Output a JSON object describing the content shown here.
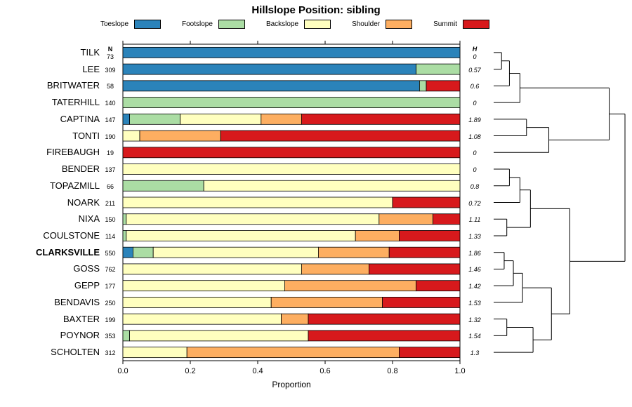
{
  "title": "Hillslope Position: sibling",
  "axis": {
    "xlabel": "Proportion",
    "ticks": [
      0,
      0.2,
      0.4,
      0.6,
      0.8,
      1.0
    ],
    "tick_labels": [
      "0.0",
      "0.2",
      "0.4",
      "0.6",
      "0.8",
      "1.0"
    ],
    "xlim": [
      0,
      1
    ]
  },
  "columns": {
    "n_header": "N",
    "h_header": "H"
  },
  "legend": [
    {
      "label": "Toeslope",
      "color": "#2B83BA"
    },
    {
      "label": "Footslope",
      "color": "#ABDDA4"
    },
    {
      "label": "Backslope",
      "color": "#FFFFBF"
    },
    {
      "label": "Shoulder",
      "color": "#FDAE61"
    },
    {
      "label": "Summit",
      "color": "#D7191C"
    }
  ],
  "chart_data": {
    "type": "bar",
    "stacked": true,
    "orientation": "horizontal",
    "title": "Hillslope Position: sibling",
    "xlabel": "Proportion",
    "xlim": [
      0,
      1
    ],
    "series_names": [
      "Toeslope",
      "Footslope",
      "Backslope",
      "Shoulder",
      "Summit"
    ],
    "series_colors": [
      "#2B83BA",
      "#ABDDA4",
      "#FFFFBF",
      "#FDAE61",
      "#D7191C"
    ],
    "rows": [
      {
        "name": "TILK",
        "n": 73,
        "h": "0",
        "bold": false,
        "segments": [
          1,
          0,
          0,
          0,
          0
        ]
      },
      {
        "name": "LEE",
        "n": 309,
        "h": "0.57",
        "bold": false,
        "segments": [
          0.87,
          0.13,
          0,
          0,
          0
        ]
      },
      {
        "name": "BRITWATER",
        "n": 58,
        "h": "0.6",
        "bold": false,
        "segments": [
          0.88,
          0.02,
          0,
          0,
          0.1
        ]
      },
      {
        "name": "TATERHILL",
        "n": 140,
        "h": "0",
        "bold": false,
        "segments": [
          0,
          1,
          0,
          0,
          0
        ]
      },
      {
        "name": "CAPTINA",
        "n": 147,
        "h": "1.89",
        "bold": false,
        "segments": [
          0.02,
          0.15,
          0.24,
          0.12,
          0.47
        ]
      },
      {
        "name": "TONTI",
        "n": 190,
        "h": "1.08",
        "bold": false,
        "segments": [
          0,
          0,
          0.05,
          0.24,
          0.71
        ]
      },
      {
        "name": "FIREBAUGH",
        "n": 19,
        "h": "0",
        "bold": false,
        "segments": [
          0,
          0,
          0,
          0,
          1
        ]
      },
      {
        "name": "BENDER",
        "n": 137,
        "h": "0",
        "bold": false,
        "segments": [
          0,
          0,
          1,
          0,
          0
        ]
      },
      {
        "name": "TOPAZMILL",
        "n": 66,
        "h": "0.8",
        "bold": false,
        "segments": [
          0,
          0.24,
          0.76,
          0,
          0
        ]
      },
      {
        "name": "NOARK",
        "n": 211,
        "h": "0.72",
        "bold": false,
        "segments": [
          0,
          0,
          0.8,
          0,
          0.2
        ]
      },
      {
        "name": "NIXA",
        "n": 150,
        "h": "1.11",
        "bold": false,
        "segments": [
          0,
          0.01,
          0.75,
          0.16,
          0.08
        ]
      },
      {
        "name": "COULSTONE",
        "n": 114,
        "h": "1.33",
        "bold": false,
        "segments": [
          0,
          0.01,
          0.68,
          0.13,
          0.18
        ]
      },
      {
        "name": "CLARKSVILLE",
        "n": 550,
        "h": "1.86",
        "bold": true,
        "segments": [
          0.03,
          0.06,
          0.49,
          0.21,
          0.21
        ]
      },
      {
        "name": "GOSS",
        "n": 762,
        "h": "1.46",
        "bold": false,
        "segments": [
          0,
          0,
          0.53,
          0.2,
          0.27
        ]
      },
      {
        "name": "GEPP",
        "n": 177,
        "h": "1.42",
        "bold": false,
        "segments": [
          0,
          0,
          0.48,
          0.39,
          0.13
        ]
      },
      {
        "name": "BENDAVIS",
        "n": 250,
        "h": "1.53",
        "bold": false,
        "segments": [
          0,
          0,
          0.44,
          0.33,
          0.23
        ]
      },
      {
        "name": "BAXTER",
        "n": 199,
        "h": "1.32",
        "bold": false,
        "segments": [
          0,
          0,
          0.47,
          0.08,
          0.45
        ]
      },
      {
        "name": "POYNOR",
        "n": 353,
        "h": "1.54",
        "bold": false,
        "segments": [
          0,
          0.02,
          0.53,
          0,
          0.45
        ]
      },
      {
        "name": "SCHOLTEN",
        "n": 312,
        "h": "1.3",
        "bold": false,
        "segments": [
          0,
          0,
          0.19,
          0.63,
          0.18
        ]
      }
    ],
    "dendrogram": {
      "h": 1.0,
      "l": {
        "h": 0.88,
        "l": {
          "h": 0.2,
          "l": {
            "h": 0.12,
            "l": {
              "h": 0.06,
              "l": 0,
              "r": 1
            },
            "r": 2
          },
          "r": 3
        },
        "r": {
          "h": 0.42,
          "l": {
            "h": 0.25,
            "l": 4,
            "r": 5
          },
          "r": 6
        }
      },
      "r": {
        "h": 0.58,
        "l": {
          "h": 0.28,
          "l": {
            "h": 0.2,
            "l": {
              "h": 0.12,
              "l": 7,
              "r": 8
            },
            "r": 9
          },
          "r": {
            "h": 0.1,
            "l": 10,
            "r": 11
          }
        },
        "r": {
          "h": 0.44,
          "l": {
            "h": 0.22,
            "l": {
              "h": 0.15,
              "l": {
                "h": 0.08,
                "l": 12,
                "r": 13
              },
              "r": 14
            },
            "r": 15
          },
          "r": {
            "h": 0.3,
            "l": {
              "h": 0.1,
              "l": 16,
              "r": 17
            },
            "r": 18
          }
        }
      }
    }
  }
}
